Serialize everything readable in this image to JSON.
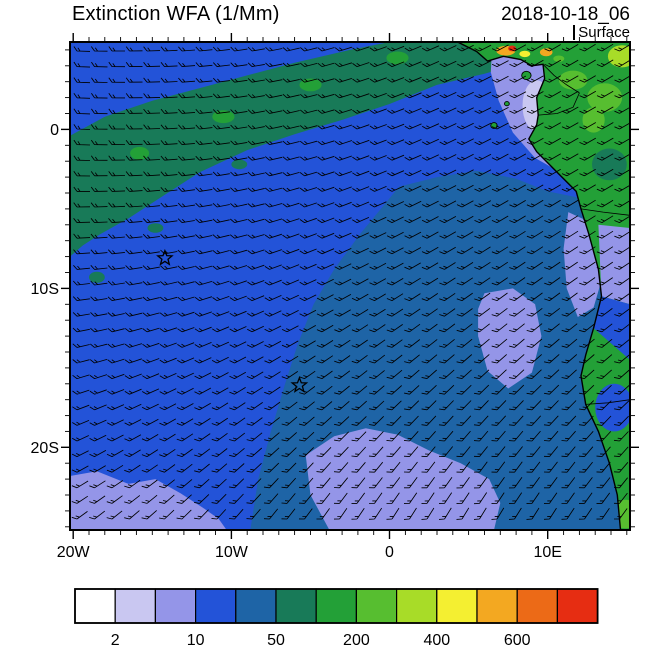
{
  "header": {
    "title": "Extinction WFA (1/Mm)",
    "datetime": "2018-10-18_06",
    "level": "Surface"
  },
  "chart_data": {
    "type": "heatmap",
    "title": "Extinction WFA (1/Mm)",
    "datetime": "2018-10-18_06",
    "level": "Surface",
    "units": "1/Mm",
    "lon_range": [
      -20.2,
      15.2
    ],
    "lat_range": [
      -25.2,
      5.5
    ],
    "x_ticks": [
      {
        "label": "20W",
        "lon": -20
      },
      {
        "label": "10W",
        "lon": -10
      },
      {
        "label": "0",
        "lon": 0
      },
      {
        "label": "10E",
        "lon": 10
      }
    ],
    "y_ticks": [
      {
        "label": "0",
        "lat": 0
      },
      {
        "label": "10S",
        "lat": -10
      },
      {
        "label": "20S",
        "lat": -20
      }
    ],
    "colorbar": {
      "levels": [
        2,
        5,
        10,
        25,
        50,
        100,
        200,
        300,
        400,
        500,
        600,
        700
      ],
      "colors": [
        "#FFFFFF",
        "#C9C7F1",
        "#9495E8",
        "#2353D8",
        "#1E64A6",
        "#187A58",
        "#23A037",
        "#57BE30",
        "#A8DC28",
        "#F4EF31",
        "#F3A821",
        "#EC6A17",
        "#E62D12"
      ],
      "shown_labels": [
        "2",
        "10",
        "50",
        "200",
        "400",
        "600"
      ],
      "shown_at_boundaries": [
        1,
        3,
        5,
        7,
        9,
        11
      ]
    },
    "ocean_color_index": 3,
    "regions": [
      {
        "name": "green-arc-northwest",
        "value_range": "50-100",
        "color_index": 5,
        "points": [
          [
            -20.2,
            -0.4
          ],
          [
            -18,
            0.8
          ],
          [
            -15,
            1.8
          ],
          [
            -12,
            2.6
          ],
          [
            -9,
            3.4
          ],
          [
            -6,
            4.2
          ],
          [
            -2.5,
            5.0
          ],
          [
            0,
            5.5
          ],
          [
            8.6,
            5.5
          ],
          [
            8.8,
            4.3
          ],
          [
            6,
            3.5
          ],
          [
            3,
            2.8
          ],
          [
            0,
            1.6
          ],
          [
            -3,
            0.6
          ],
          [
            -6,
            -0.3
          ],
          [
            -9,
            -1.3
          ],
          [
            -12,
            -2.7
          ],
          [
            -14.5,
            -4.3
          ],
          [
            -16.5,
            -5.6
          ],
          [
            -18.3,
            -6.6
          ],
          [
            -19.4,
            -7.3
          ],
          [
            -20.2,
            -8.0
          ]
        ]
      },
      {
        "name": "dark-blue-southeast",
        "value_range": "25-50",
        "color_index": 4,
        "points": [
          [
            0.6,
            -3.6
          ],
          [
            3,
            -3.0
          ],
          [
            5.5,
            -2.6
          ],
          [
            8,
            -3.1
          ],
          [
            10,
            -3.9
          ],
          [
            12,
            -4.3
          ],
          [
            15.2,
            -4.6
          ],
          [
            15.2,
            -25.2
          ],
          [
            -8.8,
            -25.2
          ],
          [
            -8.3,
            -22
          ],
          [
            -7.5,
            -19
          ],
          [
            -6.6,
            -16
          ],
          [
            -5.8,
            -13.5
          ],
          [
            -4.8,
            -11
          ],
          [
            -3.5,
            -8.8
          ],
          [
            -1.8,
            -6.5
          ],
          [
            -0.3,
            -4.7
          ]
        ]
      },
      {
        "name": "lavender-bottom-left",
        "value_range": "5-10",
        "color_index": 2,
        "points": [
          [
            -20.2,
            -21.8
          ],
          [
            -18.5,
            -21.5
          ],
          [
            -16.5,
            -22.3
          ],
          [
            -14.8,
            -22.0
          ],
          [
            -13.2,
            -22.9
          ],
          [
            -11.8,
            -23.8
          ],
          [
            -10.8,
            -24.5
          ],
          [
            -10.3,
            -25.2
          ],
          [
            -20.2,
            -25.2
          ]
        ]
      },
      {
        "name": "lavender-bottom-center",
        "value_range": "5-10",
        "color_index": 2,
        "points": [
          [
            -5.3,
            -20.5
          ],
          [
            -3.5,
            -19.3
          ],
          [
            -1.5,
            -18.8
          ],
          [
            0.5,
            -19.2
          ],
          [
            2.5,
            -20.2
          ],
          [
            4.5,
            -21.0
          ],
          [
            6.3,
            -22.0
          ],
          [
            7.0,
            -23.5
          ],
          [
            6.6,
            -25.2
          ],
          [
            -3.8,
            -25.2
          ],
          [
            -5.0,
            -23.0
          ]
        ]
      },
      {
        "name": "lavender-mid-right",
        "value_range": "5-10",
        "color_index": 2,
        "points": [
          [
            6.0,
            -10.3
          ],
          [
            7.8,
            -10.0
          ],
          [
            9.2,
            -11.0
          ],
          [
            9.6,
            -13.0
          ],
          [
            9.0,
            -15.3
          ],
          [
            7.5,
            -16.3
          ],
          [
            6.2,
            -15.2
          ],
          [
            5.6,
            -13.0
          ],
          [
            5.6,
            -11.3
          ]
        ]
      },
      {
        "name": "lavender-coastal-angola",
        "value_range": "5-10",
        "color_index": 2,
        "points": [
          [
            11.3,
            -5.2
          ],
          [
            12.6,
            -5.8
          ],
          [
            13.2,
            -7.5
          ],
          [
            13.4,
            -9.5
          ],
          [
            12.9,
            -11.2
          ],
          [
            11.9,
            -11.8
          ],
          [
            11.2,
            -10.0
          ],
          [
            11.0,
            -7.5
          ]
        ]
      },
      {
        "name": "lavender-gulf-of-guinea",
        "value_range": "5-10",
        "color_index": 2,
        "points": [
          [
            6.5,
            5.5
          ],
          [
            10.3,
            5.5
          ],
          [
            10.6,
            4.0
          ],
          [
            11.3,
            2.5
          ],
          [
            12.0,
            0.5
          ],
          [
            12.2,
            -1.8
          ],
          [
            10.8,
            -2.7
          ],
          [
            9.2,
            -1.8
          ],
          [
            7.8,
            -0.2
          ],
          [
            6.9,
            1.8
          ],
          [
            6.4,
            3.6
          ]
        ]
      }
    ],
    "ocean_spots": [
      [
        -16,
        -2.5,
        0.7,
        0.45,
        5
      ],
      [
        -11,
        -0.3,
        0.8,
        0.45,
        5
      ],
      [
        -6.2,
        1.9,
        0.9,
        0.5,
        5
      ],
      [
        -1.5,
        3.8,
        0.9,
        0.5,
        5
      ],
      [
        2.6,
        4.6,
        0.8,
        0.45,
        5
      ],
      [
        -18.5,
        -9.3,
        0.5,
        0.35,
        5
      ],
      [
        -14.8,
        -6.2,
        0.5,
        0.3,
        5
      ],
      [
        -9.5,
        -2.2,
        0.5,
        0.3,
        5
      ],
      [
        -15.8,
        -1.5,
        0.6,
        0.4,
        6
      ],
      [
        -10.5,
        0.8,
        0.7,
        0.4,
        6
      ],
      [
        -5,
        2.8,
        0.7,
        0.4,
        6
      ],
      [
        0.5,
        4.5,
        0.7,
        0.4,
        6
      ],
      [
        9.3,
        1.5,
        0.9,
        1.6,
        1
      ]
    ],
    "land": {
      "base_color_index": 6,
      "coast_points": [
        [
          4.3,
          5.5
        ],
        [
          5.5,
          4.9
        ],
        [
          6.2,
          4.3
        ],
        [
          7.2,
          4.6
        ],
        [
          8.3,
          4.4
        ],
        [
          9.0,
          4.0
        ],
        [
          9.7,
          4.1
        ],
        [
          9.8,
          3.2
        ],
        [
          9.3,
          2.0
        ],
        [
          9.4,
          0.9
        ],
        [
          9.3,
          0.3
        ],
        [
          8.8,
          -0.6
        ],
        [
          9.3,
          -1.4
        ],
        [
          10.5,
          -2.6
        ],
        [
          11.8,
          -3.9
        ],
        [
          12.1,
          -5.0
        ],
        [
          12.6,
          -6.6
        ],
        [
          13.2,
          -8.8
        ],
        [
          13.4,
          -10.5
        ],
        [
          12.9,
          -12.5
        ],
        [
          12.4,
          -14.2
        ],
        [
          12.1,
          -15.5
        ],
        [
          12.4,
          -17.3
        ],
        [
          13.2,
          -19.0
        ],
        [
          13.9,
          -21.0
        ],
        [
          14.4,
          -23.0
        ],
        [
          14.6,
          -25.2
        ],
        [
          15.2,
          -25.2
        ],
        [
          15.2,
          5.5
        ]
      ],
      "patches": [
        {
          "points": [
            [
              13.2,
              -6.0
            ],
            [
              15.2,
              -6.2
            ],
            [
              15.2,
              -11.0
            ],
            [
              13.4,
              -10.5
            ]
          ],
          "ci": 2
        },
        {
          "points": [
            [
              13.4,
              -10.5
            ],
            [
              15.2,
              -11.0
            ],
            [
              15.2,
              -14.5
            ],
            [
              12.9,
              -12.5
            ]
          ],
          "ci": 3
        },
        {
          "ellipse": [
            14.2,
            -17.5,
            1.2,
            1.5
          ],
          "ci": 3
        },
        {
          "ellipse": [
            11.6,
            3.1,
            0.9,
            0.6
          ],
          "ci": 7
        },
        {
          "ellipse": [
            13.6,
            2.0,
            1.1,
            0.9
          ],
          "ci": 7
        },
        {
          "ellipse": [
            14.7,
            4.6,
            0.9,
            0.7
          ],
          "ci": 8
        },
        {
          "ellipse": [
            13.9,
            -2.2,
            1.1,
            1.0
          ],
          "ci": 5
        },
        {
          "ellipse": [
            14.9,
            -24.2,
            1.0,
            0.9
          ],
          "ci": 7
        },
        {
          "ellipse": [
            12.9,
            0.6,
            0.7,
            0.8
          ],
          "ci": 7
        }
      ],
      "hotspots": [
        {
          "ellipse": [
            7.35,
            4.95,
            0.6,
            0.3
          ],
          "ci": 10
        },
        {
          "ellipse": [
            7.75,
            5.1,
            0.25,
            0.18
          ],
          "ci": 12
        },
        {
          "ellipse": [
            8.55,
            4.75,
            0.35,
            0.2
          ],
          "ci": 9
        },
        {
          "ellipse": [
            9.9,
            4.85,
            0.4,
            0.25
          ],
          "ci": 10
        },
        {
          "ellipse": [
            10.7,
            4.45,
            0.35,
            0.2
          ],
          "ci": 7
        }
      ],
      "islands": [
        [
          8.65,
          3.4,
          0.3,
          0.26
        ],
        [
          7.42,
          1.62,
          0.15,
          0.13
        ],
        [
          6.6,
          0.25,
          0.2,
          0.18
        ]
      ],
      "borders": [
        [
          [
            9.7,
            4.1
          ],
          [
            10.4,
            3.4
          ],
          [
            11.2,
            2.8
          ],
          [
            12.0,
            2.3
          ]
        ],
        [
          [
            9.4,
            0.9
          ],
          [
            10.6,
            1.0
          ],
          [
            11.6,
            1.4
          ],
          [
            12.0,
            2.3
          ]
        ],
        [
          [
            12.1,
            -5.0
          ],
          [
            13.5,
            -5.2
          ],
          [
            15.2,
            -5.4
          ]
        ],
        [
          [
            12.4,
            -17.3
          ],
          [
            13.8,
            -17.2
          ],
          [
            15.2,
            -17.0
          ]
        ]
      ]
    },
    "markers": [
      {
        "shape": "star",
        "lon": -14.2,
        "lat": -8.1
      },
      {
        "shape": "star",
        "lon": -5.7,
        "lat": -16.1
      }
    ],
    "wind_barbs": {
      "style": "barb-grid",
      "spacing_px": [
        17.5,
        15.6
      ]
    }
  }
}
